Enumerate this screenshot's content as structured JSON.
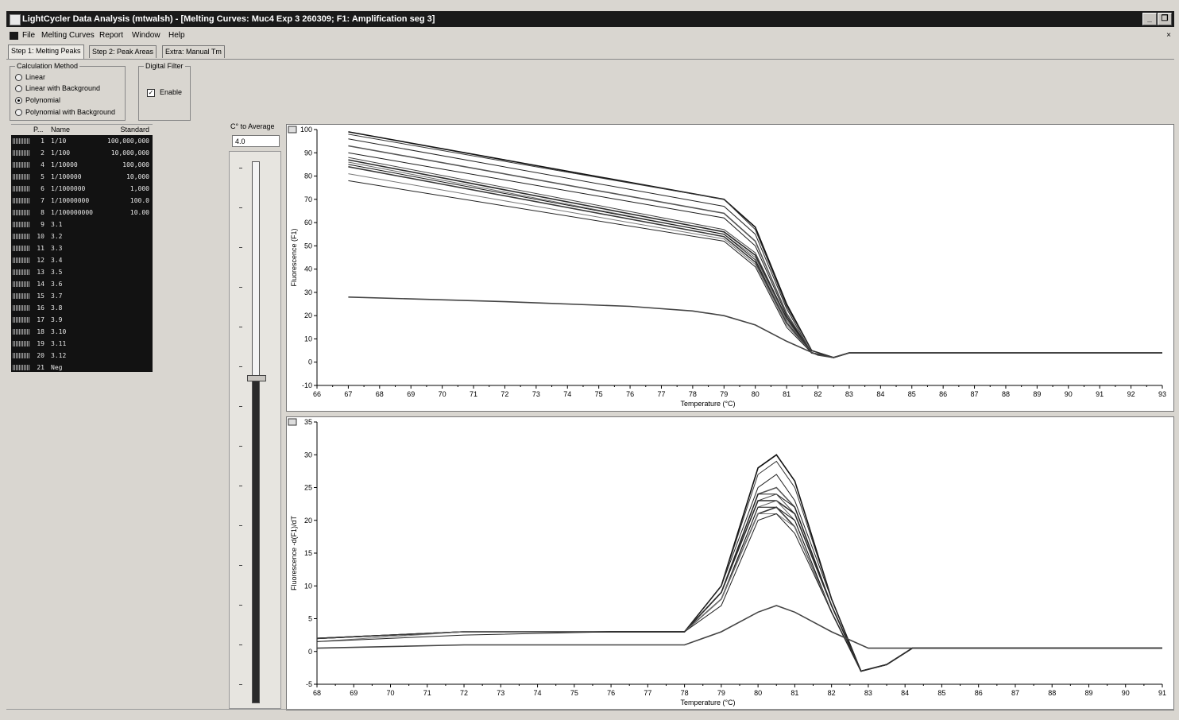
{
  "window": {
    "title": "LightCycler Data Analysis (mtwalsh) - [Melting Curves: Muc4 Exp 3 260309; F1: Amplification seg 3]"
  },
  "menu": {
    "items": [
      "File",
      "Melting Curves",
      "Report",
      "Window",
      "Help"
    ]
  },
  "tabs": [
    {
      "label": "Step 1: Melting Peaks",
      "active": true
    },
    {
      "label": "Step 2: Peak Areas",
      "active": false
    },
    {
      "label": "Extra: Manual Tm",
      "active": false
    }
  ],
  "calc_method": {
    "label": "Calculation Method",
    "options": [
      {
        "label": "Linear",
        "selected": false
      },
      {
        "label": "Linear with Background",
        "selected": false
      },
      {
        "label": "Polynomial",
        "selected": true
      },
      {
        "label": "Polynomial with Background",
        "selected": false
      }
    ]
  },
  "digital_filter": {
    "label": "Digital Filter",
    "enable_label": "Enable",
    "enabled": true
  },
  "sample_table": {
    "headers": {
      "pos": "P...",
      "name": "Name",
      "standard": "Standard"
    },
    "rows": [
      {
        "pos": "1",
        "name": "1/10",
        "standard": "100,000,000"
      },
      {
        "pos": "2",
        "name": "1/100",
        "standard": "10,000,000"
      },
      {
        "pos": "4",
        "name": "1/10000",
        "standard": "100,000"
      },
      {
        "pos": "5",
        "name": "1/100000",
        "standard": "10,000"
      },
      {
        "pos": "6",
        "name": "1/1000000",
        "standard": "1,000"
      },
      {
        "pos": "7",
        "name": "1/10000000",
        "standard": "100.0"
      },
      {
        "pos": "8",
        "name": "1/100000000",
        "standard": "10.00"
      },
      {
        "pos": "9",
        "name": "3.1",
        "standard": ""
      },
      {
        "pos": "10",
        "name": "3.2",
        "standard": ""
      },
      {
        "pos": "11",
        "name": "3.3",
        "standard": ""
      },
      {
        "pos": "12",
        "name": "3.4",
        "standard": ""
      },
      {
        "pos": "13",
        "name": "3.5",
        "standard": ""
      },
      {
        "pos": "14",
        "name": "3.6",
        "standard": ""
      },
      {
        "pos": "15",
        "name": "3.7",
        "standard": ""
      },
      {
        "pos": "16",
        "name": "3.8",
        "standard": ""
      },
      {
        "pos": "17",
        "name": "3.9",
        "standard": ""
      },
      {
        "pos": "18",
        "name": "3.10",
        "standard": ""
      },
      {
        "pos": "19",
        "name": "3.11",
        "standard": ""
      },
      {
        "pos": "20",
        "name": "3.12",
        "standard": ""
      },
      {
        "pos": "21",
        "name": "Neg",
        "standard": ""
      }
    ]
  },
  "averaging": {
    "label": "C° to Average",
    "value": "4.0",
    "slider_fraction": 0.4
  },
  "chart_data": [
    {
      "type": "line",
      "title": "",
      "xlabel": "Temperature (°C)",
      "ylabel": "Fluorescence (F1)",
      "xlim": [
        66,
        93
      ],
      "ylim": [
        -10,
        100
      ],
      "xticks": [
        66,
        67,
        68,
        69,
        70,
        71,
        72,
        73,
        74,
        75,
        76,
        77,
        78,
        79,
        80,
        81,
        82,
        83,
        84,
        85,
        86,
        87,
        88,
        89,
        90,
        91,
        92,
        93
      ],
      "yticks": [
        -10,
        0,
        10,
        20,
        30,
        40,
        50,
        60,
        70,
        80,
        90,
        100
      ],
      "series": [
        {
          "x": [
            67,
            79,
            80,
            81,
            81.8,
            82.5,
            83,
            93
          ],
          "y": [
            99,
            70,
            58,
            25,
            5,
            2,
            4,
            4
          ]
        },
        {
          "x": [
            67,
            79,
            80,
            81,
            81.8,
            82.5,
            83,
            93
          ],
          "y": [
            98,
            70,
            57,
            24,
            5,
            2,
            4,
            4
          ]
        },
        {
          "x": [
            67,
            79,
            80,
            81,
            81.8,
            82.5,
            83,
            93
          ],
          "y": [
            96,
            67,
            55,
            23,
            4,
            2,
            4,
            4
          ]
        },
        {
          "x": [
            67,
            79,
            80,
            81,
            81.8,
            82.5,
            83,
            93
          ],
          "y": [
            93,
            64,
            52,
            21,
            4,
            2,
            4,
            4
          ]
        },
        {
          "x": [
            67,
            79,
            80,
            81,
            81.8,
            82.5,
            83,
            93
          ],
          "y": [
            90,
            62,
            50,
            20,
            4,
            2,
            4,
            4
          ]
        },
        {
          "x": [
            67,
            79,
            80,
            81,
            81.8,
            82.5,
            83,
            93
          ],
          "y": [
            88,
            57,
            47,
            19,
            4,
            2,
            4,
            4
          ]
        },
        {
          "x": [
            67,
            79,
            80,
            81,
            81.8,
            82.5,
            83,
            93
          ],
          "y": [
            87,
            56,
            46,
            19,
            4,
            2,
            4,
            4
          ]
        },
        {
          "x": [
            67,
            79,
            80,
            81,
            81.8,
            82.5,
            83,
            93
          ],
          "y": [
            86,
            55,
            45,
            18,
            4,
            2,
            4,
            4
          ]
        },
        {
          "x": [
            67,
            79,
            80,
            81,
            81.8,
            82.5,
            83,
            93
          ],
          "y": [
            85,
            55,
            44,
            17,
            4,
            2,
            4,
            4
          ]
        },
        {
          "x": [
            67,
            79,
            80,
            81,
            81.8,
            82.5,
            83,
            93
          ],
          "y": [
            84,
            54,
            43,
            17,
            4,
            2,
            4,
            4
          ]
        },
        {
          "x": [
            67,
            79,
            80,
            81,
            81.8,
            82.5,
            83,
            93
          ],
          "y": [
            81,
            53,
            42,
            16,
            4,
            2,
            4,
            4
          ]
        },
        {
          "x": [
            67,
            79,
            80,
            81,
            81.8,
            82.5,
            83,
            93
          ],
          "y": [
            78,
            52,
            41,
            15,
            4,
            2,
            4,
            4
          ]
        },
        {
          "x": [
            67,
            72,
            76,
            78,
            79,
            80,
            81,
            82,
            82.5,
            83,
            93
          ],
          "y": [
            28,
            26,
            24,
            22,
            20,
            16,
            9,
            3,
            2,
            4,
            4
          ]
        }
      ]
    },
    {
      "type": "line",
      "title": "",
      "xlabel": "Temperature (°C)",
      "ylabel": "Fluorescence -d(F1)/dT",
      "xlim": [
        68,
        91
      ],
      "ylim": [
        -5,
        35
      ],
      "xticks": [
        68,
        69,
        70,
        71,
        72,
        73,
        74,
        75,
        76,
        77,
        78,
        79,
        80,
        81,
        82,
        83,
        84,
        85,
        86,
        87,
        88,
        89,
        90,
        91
      ],
      "yticks": [
        -5,
        0,
        5,
        10,
        15,
        20,
        25,
        30,
        35
      ],
      "series": [
        {
          "x": [
            68,
            72,
            76,
            78,
            79,
            80,
            80.5,
            81,
            82,
            82.8,
            83.5,
            84.2,
            91
          ],
          "y": [
            2,
            3,
            3,
            3,
            10,
            28,
            30,
            26,
            8,
            -3,
            -2,
            0.5,
            0.5
          ]
        },
        {
          "x": [
            68,
            72,
            76,
            78,
            79,
            80,
            80.5,
            81,
            82,
            82.8,
            83.5,
            84.2,
            91
          ],
          "y": [
            2,
            3,
            3,
            3,
            10,
            27,
            29,
            25,
            8,
            -3,
            -2,
            0.5,
            0.5
          ]
        },
        {
          "x": [
            68,
            72,
            76,
            78,
            79,
            80,
            80.5,
            81,
            82,
            82.8,
            83.5,
            84.2,
            91
          ],
          "y": [
            2,
            3,
            3,
            3,
            10,
            25,
            27,
            23,
            8,
            -3,
            -2,
            0.5,
            0.5
          ]
        },
        {
          "x": [
            68,
            72,
            76,
            78,
            79,
            80,
            80.5,
            81,
            82,
            82.8,
            83.5,
            84.2,
            91
          ],
          "y": [
            2,
            3,
            3,
            3,
            9,
            24,
            25,
            22,
            7,
            -3,
            -2,
            0.5,
            0.5
          ]
        },
        {
          "x": [
            68,
            72,
            76,
            78,
            79,
            80,
            80.5,
            81,
            82,
            82.8,
            83.5,
            84.2,
            91
          ],
          "y": [
            2,
            3,
            3,
            3,
            9,
            24,
            24,
            22,
            7,
            -3,
            -2,
            0.5,
            0.5
          ]
        },
        {
          "x": [
            68,
            72,
            76,
            78,
            79,
            80,
            80.5,
            81,
            82,
            82.8,
            83.5,
            84.2,
            91
          ],
          "y": [
            2,
            3,
            3,
            3,
            9,
            23,
            24,
            21,
            7,
            -3,
            -2,
            0.5,
            0.5
          ]
        },
        {
          "x": [
            68,
            72,
            76,
            78,
            79,
            80,
            80.5,
            81,
            82,
            82.8,
            83.5,
            84.2,
            91
          ],
          "y": [
            2,
            3,
            3,
            3,
            9,
            23,
            23,
            21,
            7,
            -3,
            -2,
            0.5,
            0.5
          ]
        },
        {
          "x": [
            68,
            72,
            76,
            78,
            79,
            80,
            80.5,
            81,
            82,
            82.8,
            83.5,
            84.2,
            91
          ],
          "y": [
            2,
            3,
            3,
            3,
            8,
            22,
            23,
            20,
            6,
            -3,
            -2,
            0.5,
            0.5
          ]
        },
        {
          "x": [
            68,
            72,
            76,
            78,
            79,
            80,
            80.5,
            81,
            82,
            82.8,
            83.5,
            84.2,
            91
          ],
          "y": [
            2,
            3,
            3,
            3,
            8,
            22,
            22,
            20,
            6,
            -3,
            -2,
            0.5,
            0.5
          ]
        },
        {
          "x": [
            68,
            72,
            76,
            78,
            79,
            80,
            80.5,
            81,
            82,
            82.8,
            83.5,
            84.2,
            91
          ],
          "y": [
            2,
            3,
            3,
            3,
            8,
            21,
            22,
            19,
            6,
            -3,
            -2,
            0.5,
            0.5
          ]
        },
        {
          "x": [
            68,
            72,
            76,
            78,
            79,
            80,
            80.5,
            81,
            82,
            82.8,
            83.5,
            84.2,
            91
          ],
          "y": [
            1.5,
            3,
            3,
            3,
            8,
            21,
            21,
            19,
            6,
            -3,
            -2,
            0.5,
            0.5
          ]
        },
        {
          "x": [
            68,
            72,
            76,
            78,
            79,
            80,
            80.5,
            81,
            82,
            82.8,
            83.5,
            84.2,
            91
          ],
          "y": [
            1.5,
            2.5,
            3,
            3,
            7,
            20,
            21,
            18,
            6,
            -3,
            -2,
            0.5,
            0.5
          ]
        },
        {
          "x": [
            68,
            72,
            76,
            78,
            79,
            80,
            80.5,
            81,
            82,
            83,
            84,
            91
          ],
          "y": [
            0.5,
            1,
            1,
            1,
            3,
            6,
            7,
            6,
            3,
            0.5,
            0.5,
            0.5
          ]
        }
      ]
    }
  ]
}
